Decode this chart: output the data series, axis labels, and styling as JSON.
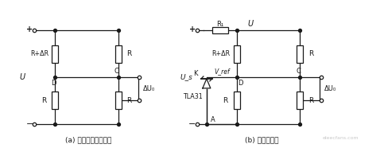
{
  "bg_color": "#ffffff",
  "line_color": "#1a1a1a",
  "fig_width": 4.83,
  "fig_height": 1.86,
  "dpi": 100,
  "label_a": "(a) 非线性输出电桥；",
  "label_b": "(b) 线性化电桥",
  "font_size_label": 6.5,
  "watermark": "eleecfans.com"
}
